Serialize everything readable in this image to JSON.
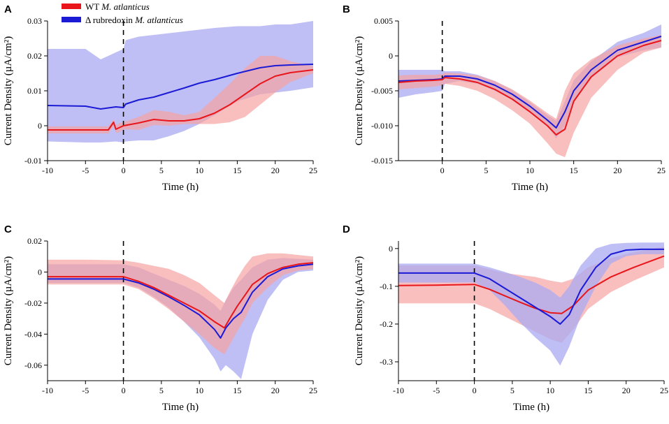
{
  "colors": {
    "wt": "#e8161b",
    "wt_band": "#f7a3a3",
    "mut": "#1b1bd6",
    "mut_band": "#a9a9f2"
  },
  "legend": {
    "items": [
      {
        "key": "wt",
        "prefix": "WT ",
        "species": "M. atlanticus"
      },
      {
        "key": "mut",
        "prefix": "Δ rubredoxin ",
        "species": "M. atlanticus"
      }
    ]
  },
  "chart_data": [
    {
      "panel": "A",
      "type": "line",
      "xlabel": "Time (h)",
      "ylabel": "Current Density (µA/cm²)",
      "xlim": [
        -10,
        25
      ],
      "ylim": [
        -0.01,
        0.03
      ],
      "xticks": [
        -10,
        -5,
        0,
        5,
        10,
        15,
        20,
        25
      ],
      "xtick_labels": [
        "-10",
        "-5",
        "0",
        "5",
        "10",
        "15",
        "20",
        "25"
      ],
      "yticks": [
        -0.01,
        0,
        0.01,
        0.02,
        0.03
      ],
      "ytick_labels": [
        "-0.01",
        "0",
        "0.01",
        "0.02",
        "0.03"
      ],
      "event_line_x": 0,
      "series": [
        {
          "name": "Δ rubredoxin M. atlanticus",
          "key": "mut",
          "x": [
            -10,
            -5,
            -3,
            -1,
            0,
            0.3,
            2,
            4,
            6,
            8,
            10,
            12,
            15,
            18,
            20,
            22,
            25
          ],
          "mean": [
            0.0058,
            0.0056,
            0.0048,
            0.0054,
            0.0052,
            0.0062,
            0.0074,
            0.0082,
            0.0095,
            0.0108,
            0.0122,
            0.0132,
            0.015,
            0.0166,
            0.0172,
            0.0174,
            0.0176
          ],
          "upper": [
            0.022,
            0.022,
            0.019,
            0.021,
            0.022,
            0.0245,
            0.0255,
            0.026,
            0.0265,
            0.027,
            0.0275,
            0.028,
            0.0285,
            0.0285,
            0.029,
            0.029,
            0.03
          ],
          "lower": [
            -0.0045,
            -0.0048,
            -0.0048,
            -0.0045,
            -0.0048,
            -0.0045,
            -0.0042,
            -0.0042,
            -0.003,
            -0.0015,
            0.0005,
            0.003,
            0.007,
            0.009,
            0.0095,
            0.01,
            0.011
          ]
        },
        {
          "name": "WT M. atlanticus",
          "key": "wt",
          "x": [
            -10,
            -5,
            -2,
            -1.3,
            -1,
            -0.5,
            0,
            2,
            4,
            6,
            8,
            10,
            12,
            14,
            16,
            18,
            20,
            22,
            25
          ],
          "mean": [
            -0.0012,
            -0.0012,
            -0.0012,
            0.001,
            -0.001,
            -0.0005,
            0.0,
            0.0008,
            0.0018,
            0.0014,
            0.0014,
            0.002,
            0.0036,
            0.006,
            0.009,
            0.012,
            0.0142,
            0.0152,
            0.016
          ],
          "upper": [
            -0.0002,
            -0.0002,
            -0.0002,
            0.0018,
            0.0,
            0.0008,
            0.001,
            0.0025,
            0.0045,
            0.004,
            0.003,
            0.004,
            0.008,
            0.012,
            0.0165,
            0.02,
            0.02,
            0.0185,
            0.017
          ],
          "lower": [
            -0.0022,
            -0.0022,
            -0.0022,
            -0.0002,
            -0.002,
            -0.0018,
            -0.001,
            -0.0012,
            0.0002,
            0.0,
            0.0005,
            0.0005,
            0.0005,
            0.001,
            0.0025,
            0.006,
            0.0095,
            0.0125,
            0.015
          ]
        }
      ]
    },
    {
      "panel": "B",
      "type": "line",
      "xlabel": "Time (h)",
      "ylabel": "Current Density (µA/cm²)",
      "xlim": [
        -5,
        25
      ],
      "ylim": [
        -0.015,
        0.005
      ],
      "xticks": [
        0,
        5,
        10,
        15,
        20,
        25
      ],
      "xtick_labels": [
        "0",
        "5",
        "10",
        "15",
        "20",
        "25"
      ],
      "yticks": [
        -0.015,
        -0.01,
        -0.005,
        0,
        0.005
      ],
      "ytick_labels": [
        "-0.015",
        "-0.010",
        "-0.005",
        "0",
        "0.005"
      ],
      "event_line_x": 0,
      "series": [
        {
          "name": "Δ rubredoxin M. atlanticus",
          "key": "mut",
          "x": [
            -5,
            -3,
            -1,
            0,
            0.3,
            2,
            4,
            6,
            8,
            10,
            12,
            13,
            14,
            15,
            17,
            20,
            23,
            25
          ],
          "mean": [
            -0.0036,
            -0.0035,
            -0.0034,
            -0.0033,
            -0.0029,
            -0.0029,
            -0.0033,
            -0.0042,
            -0.0055,
            -0.0072,
            -0.0092,
            -0.0103,
            -0.008,
            -0.005,
            -0.002,
            0.0008,
            0.002,
            0.0028
          ],
          "upper": [
            -0.002,
            -0.002,
            -0.002,
            -0.002,
            -0.0022,
            -0.0022,
            -0.0027,
            -0.0036,
            -0.0049,
            -0.0066,
            -0.0085,
            -0.0093,
            -0.0065,
            -0.0035,
            -0.0008,
            0.002,
            0.0033,
            0.0045
          ],
          "lower": [
            -0.006,
            -0.0055,
            -0.0052,
            -0.005,
            -0.004,
            -0.0036,
            -0.004,
            -0.005,
            -0.0063,
            -0.008,
            -0.01,
            -0.0118,
            -0.01,
            -0.0065,
            -0.0032,
            -0.0002,
            0.0008,
            0.0012
          ]
        },
        {
          "name": "WT M. atlanticus",
          "key": "wt",
          "x": [
            -5,
            -3,
            -1,
            0,
            0.3,
            2,
            4,
            6,
            8,
            10,
            12,
            13,
            14,
            15,
            17,
            20,
            23,
            25
          ],
          "mean": [
            -0.0038,
            -0.0036,
            -0.0035,
            -0.0034,
            -0.0031,
            -0.0033,
            -0.0038,
            -0.0048,
            -0.0062,
            -0.008,
            -0.01,
            -0.0113,
            -0.0105,
            -0.0065,
            -0.003,
            0.0,
            0.0015,
            0.0022
          ],
          "upper": [
            -0.0028,
            -0.0027,
            -0.0027,
            -0.0026,
            -0.0024,
            -0.0025,
            -0.0028,
            -0.0036,
            -0.0048,
            -0.0064,
            -0.0082,
            -0.009,
            -0.005,
            -0.0025,
            -0.0005,
            0.0015,
            0.0025,
            0.003
          ],
          "lower": [
            -0.0048,
            -0.0046,
            -0.0044,
            -0.0042,
            -0.004,
            -0.0043,
            -0.005,
            -0.0062,
            -0.0078,
            -0.0097,
            -0.0125,
            -0.014,
            -0.0145,
            -0.011,
            -0.006,
            -0.002,
            0.0005,
            0.0012
          ]
        }
      ]
    },
    {
      "panel": "C",
      "type": "line",
      "xlabel": "Time (h)",
      "ylabel": "Current Density (µA/cm²)",
      "xlim": [
        -10,
        25
      ],
      "ylim": [
        -0.07,
        0.02
      ],
      "xticks": [
        -10,
        -5,
        0,
        5,
        10,
        15,
        20,
        25
      ],
      "xtick_labels": [
        "-10",
        "-5",
        "0",
        "5",
        "10",
        "15",
        "20",
        "25"
      ],
      "yticks": [
        -0.06,
        -0.04,
        -0.02,
        0,
        0.02
      ],
      "ytick_labels": [
        "-0.06",
        "-0.04",
        "-0.02",
        "0",
        "0.02"
      ],
      "event_line_x": 0,
      "series": [
        {
          "name": "Δ rubredoxin M. atlanticus",
          "key": "mut",
          "x": [
            -10,
            -5,
            0,
            2,
            4,
            6,
            8,
            10,
            12,
            12.8,
            13.5,
            14.5,
            15.5,
            17,
            19,
            21,
            23,
            25
          ],
          "mean": [
            -0.0045,
            -0.0045,
            -0.0045,
            -0.007,
            -0.011,
            -0.016,
            -0.0215,
            -0.0275,
            -0.037,
            -0.0425,
            -0.036,
            -0.03,
            -0.026,
            -0.013,
            -0.003,
            0.002,
            0.004,
            0.005
          ],
          "upper": [
            0.005,
            0.005,
            0.005,
            0.003,
            -0.001,
            -0.005,
            -0.009,
            -0.014,
            -0.021,
            -0.025,
            -0.018,
            -0.01,
            -0.005,
            0.003,
            0.008,
            0.009,
            0.0085,
            0.008
          ],
          "lower": [
            -0.007,
            -0.007,
            -0.007,
            -0.01,
            -0.016,
            -0.023,
            -0.032,
            -0.042,
            -0.056,
            -0.064,
            -0.06,
            -0.064,
            -0.069,
            -0.04,
            -0.018,
            -0.005,
            0.0,
            0.001
          ]
        },
        {
          "name": "WT M. atlanticus",
          "key": "wt",
          "x": [
            -10,
            -5,
            0,
            2,
            4,
            6,
            8,
            10,
            12,
            13.3,
            14,
            15,
            16,
            17,
            19,
            21,
            23,
            25
          ],
          "mean": [
            -0.003,
            -0.003,
            -0.003,
            -0.006,
            -0.01,
            -0.015,
            -0.02,
            -0.025,
            -0.032,
            -0.036,
            -0.03,
            -0.022,
            -0.015,
            -0.008,
            -0.001,
            0.003,
            0.005,
            0.006
          ],
          "upper": [
            0.008,
            0.008,
            0.0075,
            0.006,
            0.004,
            0.002,
            -0.002,
            -0.007,
            -0.015,
            -0.02,
            -0.013,
            -0.004,
            0.004,
            0.01,
            0.012,
            0.012,
            0.011,
            0.01
          ],
          "lower": [
            -0.008,
            -0.008,
            -0.008,
            -0.011,
            -0.017,
            -0.024,
            -0.032,
            -0.04,
            -0.049,
            -0.053,
            -0.047,
            -0.038,
            -0.03,
            -0.02,
            -0.01,
            -0.002,
            0.001,
            0.002
          ]
        }
      ]
    },
    {
      "panel": "D",
      "type": "line",
      "xlabel": "Time (h)",
      "ylabel": "Current Density (µA/cm²)",
      "xlim": [
        -10,
        25
      ],
      "ylim": [
        -0.35,
        0.02
      ],
      "xticks": [
        -10,
        -5,
        0,
        5,
        10,
        15,
        20,
        25
      ],
      "xtick_labels": [
        "-10",
        "-5",
        "0",
        "5",
        "10",
        "15",
        "20",
        "25"
      ],
      "yticks": [
        -0.3,
        -0.2,
        -0.1,
        0
      ],
      "ytick_labels": [
        "-0.3",
        "-0.2",
        "-0.1",
        "0"
      ],
      "event_line_x": 0,
      "series": [
        {
          "name": "WT M. atlanticus",
          "key": "wt",
          "x": [
            -10,
            -5,
            0,
            2,
            4,
            6,
            8,
            10,
            11.5,
            13,
            15,
            18,
            21,
            25
          ],
          "mean": [
            -0.098,
            -0.097,
            -0.095,
            -0.108,
            -0.125,
            -0.142,
            -0.158,
            -0.17,
            -0.172,
            -0.152,
            -0.11,
            -0.075,
            -0.05,
            -0.02
          ],
          "upper": [
            -0.045,
            -0.045,
            -0.045,
            -0.055,
            -0.065,
            -0.07,
            -0.075,
            -0.085,
            -0.09,
            -0.08,
            -0.05,
            -0.025,
            -0.01,
            0.005
          ],
          "lower": [
            -0.145,
            -0.145,
            -0.145,
            -0.16,
            -0.18,
            -0.2,
            -0.22,
            -0.24,
            -0.25,
            -0.215,
            -0.16,
            -0.115,
            -0.085,
            -0.05
          ]
        },
        {
          "name": "Δ rubredoxin M. atlanticus",
          "key": "mut",
          "x": [
            -10,
            -5,
            0,
            2,
            4,
            6,
            8,
            10,
            11.3,
            12.5,
            14,
            16,
            18,
            20,
            22,
            25
          ],
          "mean": [
            -0.065,
            -0.065,
            -0.065,
            -0.08,
            -0.105,
            -0.13,
            -0.155,
            -0.18,
            -0.2,
            -0.175,
            -0.11,
            -0.05,
            -0.015,
            -0.004,
            -0.002,
            -0.002
          ],
          "upper": [
            -0.04,
            -0.04,
            -0.04,
            -0.05,
            -0.062,
            -0.075,
            -0.09,
            -0.11,
            -0.13,
            -0.1,
            -0.045,
            0.0,
            0.012,
            0.015,
            0.016,
            0.016
          ],
          "lower": [
            -0.09,
            -0.09,
            -0.09,
            -0.11,
            -0.15,
            -0.195,
            -0.235,
            -0.27,
            -0.31,
            -0.26,
            -0.18,
            -0.1,
            -0.04,
            -0.02,
            -0.015,
            -0.015
          ]
        }
      ]
    }
  ]
}
